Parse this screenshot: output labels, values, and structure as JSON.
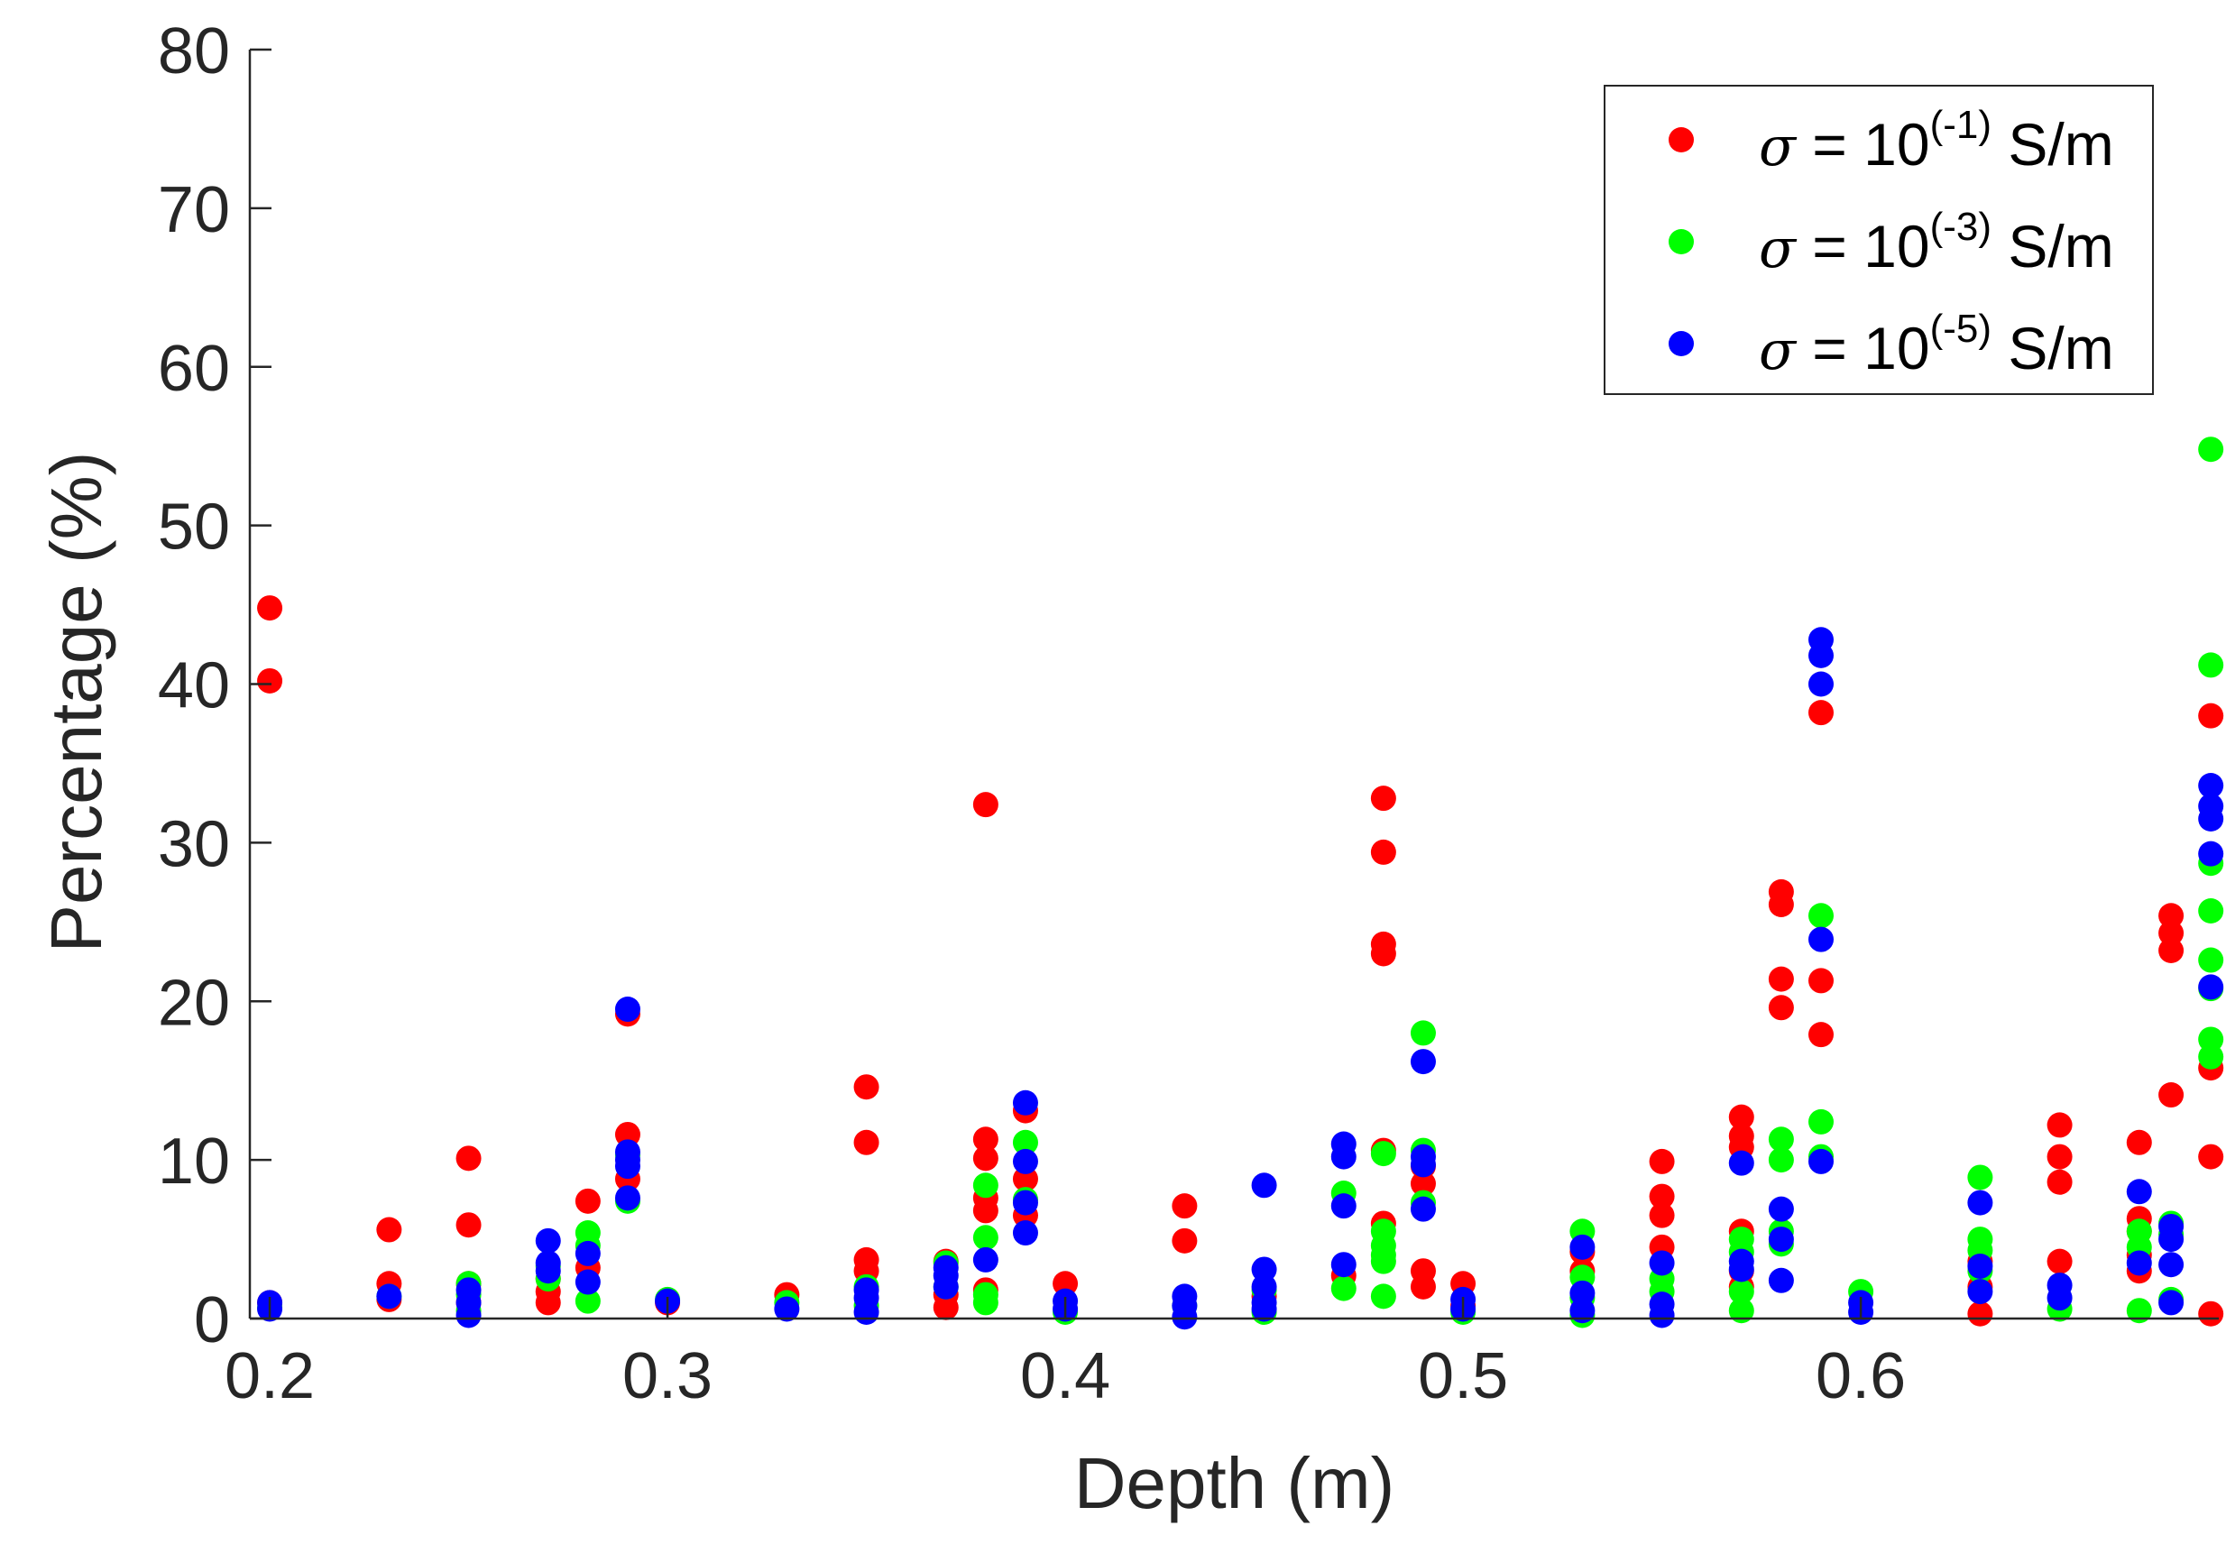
{
  "chart_data": {
    "type": "scatter",
    "title": "",
    "xlabel": "Depth (m)",
    "ylabel": "Percentage (%)",
    "xlim": [
      0.195,
      0.69
    ],
    "ylim": [
      0,
      80
    ],
    "xticks": [
      0.2,
      0.3,
      0.4,
      0.5,
      0.6
    ],
    "xtick_labels": [
      "0.2",
      "0.3",
      "0.4",
      "0.5",
      "0.6"
    ],
    "yticks": [
      0,
      10,
      20,
      30,
      40,
      50,
      60,
      70,
      80
    ],
    "ytick_labels": [
      "0",
      "10",
      "20",
      "30",
      "40",
      "50",
      "60",
      "70",
      "80"
    ],
    "grid": false,
    "legend_position": "top-right",
    "series": [
      {
        "name": "σ = 10(-1) S/m",
        "legend": {
          "symbol": "σ",
          "base": " = 10",
          "exponent": "(-1)",
          "unit": " S/m"
        },
        "color": "#ff0000",
        "points": [
          [
            0.2,
            44.8
          ],
          [
            0.2,
            40.2
          ],
          [
            0.2,
            1.0
          ],
          [
            0.23,
            5.6
          ],
          [
            0.23,
            2.2
          ],
          [
            0.23,
            1.2
          ],
          [
            0.25,
            10.1
          ],
          [
            0.25,
            5.9
          ],
          [
            0.25,
            2.2
          ],
          [
            0.25,
            1.0
          ],
          [
            0.27,
            2.5
          ],
          [
            0.27,
            1.7
          ],
          [
            0.27,
            1.0
          ],
          [
            0.28,
            7.4
          ],
          [
            0.28,
            3.2
          ],
          [
            0.29,
            19.2
          ],
          [
            0.29,
            11.6
          ],
          [
            0.29,
            8.8
          ],
          [
            0.3,
            1.0
          ],
          [
            0.33,
            1.5
          ],
          [
            0.35,
            14.6
          ],
          [
            0.35,
            11.1
          ],
          [
            0.35,
            3.7
          ],
          [
            0.35,
            3.0
          ],
          [
            0.37,
            3.6
          ],
          [
            0.37,
            1.5
          ],
          [
            0.37,
            0.7
          ],
          [
            0.38,
            32.4
          ],
          [
            0.38,
            11.3
          ],
          [
            0.38,
            10.1
          ],
          [
            0.38,
            7.6
          ],
          [
            0.38,
            6.8
          ],
          [
            0.38,
            1.8
          ],
          [
            0.39,
            13.1
          ],
          [
            0.39,
            8.8
          ],
          [
            0.39,
            6.5
          ],
          [
            0.4,
            2.2
          ],
          [
            0.43,
            7.1
          ],
          [
            0.43,
            4.9
          ],
          [
            0.45,
            1.4
          ],
          [
            0.47,
            2.7
          ],
          [
            0.48,
            32.8
          ],
          [
            0.48,
            29.4
          ],
          [
            0.48,
            23.6
          ],
          [
            0.48,
            23.0
          ],
          [
            0.48,
            10.6
          ],
          [
            0.48,
            6.0
          ],
          [
            0.49,
            9.6
          ],
          [
            0.49,
            8.5
          ],
          [
            0.49,
            3.0
          ],
          [
            0.49,
            2.0
          ],
          [
            0.5,
            2.2
          ],
          [
            0.5,
            0.8
          ],
          [
            0.53,
            4.2
          ],
          [
            0.53,
            3.0
          ],
          [
            0.55,
            9.9
          ],
          [
            0.55,
            7.7
          ],
          [
            0.55,
            6.5
          ],
          [
            0.55,
            4.5
          ],
          [
            0.57,
            12.7
          ],
          [
            0.57,
            11.5
          ],
          [
            0.57,
            10.8
          ],
          [
            0.57,
            5.5
          ],
          [
            0.57,
            3.0
          ],
          [
            0.57,
            2.0
          ],
          [
            0.58,
            26.9
          ],
          [
            0.58,
            26.1
          ],
          [
            0.58,
            21.4
          ],
          [
            0.58,
            19.6
          ],
          [
            0.59,
            38.2
          ],
          [
            0.59,
            21.3
          ],
          [
            0.59,
            17.9
          ],
          [
            0.63,
            3.6
          ],
          [
            0.63,
            2.0
          ],
          [
            0.63,
            0.3
          ],
          [
            0.65,
            12.2
          ],
          [
            0.65,
            10.2
          ],
          [
            0.65,
            8.6
          ],
          [
            0.65,
            3.6
          ],
          [
            0.67,
            11.1
          ],
          [
            0.67,
            6.3
          ],
          [
            0.67,
            5.5
          ],
          [
            0.67,
            4.0
          ],
          [
            0.67,
            3.0
          ],
          [
            0.678,
            25.4
          ],
          [
            0.678,
            24.3
          ],
          [
            0.678,
            23.2
          ],
          [
            0.678,
            14.1
          ],
          [
            0.688,
            38.0
          ],
          [
            0.688,
            15.8
          ],
          [
            0.688,
            10.2
          ],
          [
            0.688,
            0.3
          ]
        ]
      },
      {
        "name": "σ = 10(-3) S/m",
        "legend": {
          "symbol": "σ",
          "base": " = 10",
          "exponent": "(-3)",
          "unit": " S/m"
        },
        "color": "#00ff00",
        "points": [
          [
            0.2,
            0.7
          ],
          [
            0.23,
            1.4
          ],
          [
            0.25,
            2.2
          ],
          [
            0.25,
            1.5
          ],
          [
            0.25,
            0.5
          ],
          [
            0.27,
            3.3
          ],
          [
            0.27,
            2.5
          ],
          [
            0.28,
            5.4
          ],
          [
            0.28,
            4.6
          ],
          [
            0.28,
            1.1
          ],
          [
            0.29,
            10.3
          ],
          [
            0.29,
            7.4
          ],
          [
            0.3,
            1.2
          ],
          [
            0.33,
            1.0
          ],
          [
            0.35,
            2.0
          ],
          [
            0.35,
            0.8
          ],
          [
            0.37,
            3.5
          ],
          [
            0.37,
            2.0
          ],
          [
            0.38,
            8.4
          ],
          [
            0.38,
            5.1
          ],
          [
            0.38,
            1.5
          ],
          [
            0.38,
            1.0
          ],
          [
            0.39,
            11.1
          ],
          [
            0.39,
            7.5
          ],
          [
            0.4,
            0.4
          ],
          [
            0.43,
            0.8
          ],
          [
            0.45,
            1.8
          ],
          [
            0.45,
            0.4
          ],
          [
            0.47,
            7.9
          ],
          [
            0.47,
            1.9
          ],
          [
            0.48,
            10.4
          ],
          [
            0.48,
            5.5
          ],
          [
            0.48,
            4.6
          ],
          [
            0.48,
            4.0
          ],
          [
            0.48,
            3.6
          ],
          [
            0.48,
            1.4
          ],
          [
            0.49,
            18.0
          ],
          [
            0.49,
            10.6
          ],
          [
            0.49,
            7.3
          ],
          [
            0.5,
            0.4
          ],
          [
            0.53,
            5.5
          ],
          [
            0.53,
            2.6
          ],
          [
            0.53,
            1.3
          ],
          [
            0.53,
            0.2
          ],
          [
            0.55,
            2.5
          ],
          [
            0.55,
            1.7
          ],
          [
            0.57,
            5.0
          ],
          [
            0.57,
            4.2
          ],
          [
            0.57,
            1.7
          ],
          [
            0.57,
            0.5
          ],
          [
            0.58,
            11.3
          ],
          [
            0.58,
            10.0
          ],
          [
            0.58,
            5.5
          ],
          [
            0.58,
            4.7
          ],
          [
            0.59,
            25.4
          ],
          [
            0.59,
            12.4
          ],
          [
            0.59,
            10.2
          ],
          [
            0.6,
            1.7
          ],
          [
            0.63,
            8.9
          ],
          [
            0.63,
            5.0
          ],
          [
            0.63,
            4.3
          ],
          [
            0.63,
            3.0
          ],
          [
            0.65,
            0.6
          ],
          [
            0.67,
            5.5
          ],
          [
            0.67,
            4.5
          ],
          [
            0.67,
            0.5
          ],
          [
            0.678,
            6.0
          ],
          [
            0.678,
            5.3
          ],
          [
            0.678,
            1.2
          ],
          [
            0.688,
            54.8
          ],
          [
            0.688,
            41.2
          ],
          [
            0.688,
            28.7
          ],
          [
            0.688,
            25.7
          ],
          [
            0.688,
            22.6
          ],
          [
            0.688,
            20.8
          ],
          [
            0.688,
            17.6
          ],
          [
            0.688,
            16.5
          ]
        ]
      },
      {
        "name": "σ = 10(-5) S/m",
        "legend": {
          "symbol": "σ",
          "base": " = 10",
          "exponent": "(-5)",
          "unit": " S/m"
        },
        "color": "#0000ff",
        "points": [
          [
            0.2,
            1.0
          ],
          [
            0.2,
            0.6
          ],
          [
            0.23,
            1.4
          ],
          [
            0.25,
            1.8
          ],
          [
            0.25,
            1.0
          ],
          [
            0.25,
            0.2
          ],
          [
            0.27,
            4.9
          ],
          [
            0.27,
            3.5
          ],
          [
            0.27,
            3.0
          ],
          [
            0.28,
            4.1
          ],
          [
            0.28,
            2.3
          ],
          [
            0.29,
            19.5
          ],
          [
            0.29,
            10.5
          ],
          [
            0.29,
            10.0
          ],
          [
            0.29,
            9.6
          ],
          [
            0.29,
            7.6
          ],
          [
            0.3,
            1.1
          ],
          [
            0.33,
            0.6
          ],
          [
            0.35,
            1.8
          ],
          [
            0.35,
            1.3
          ],
          [
            0.35,
            0.4
          ],
          [
            0.37,
            3.2
          ],
          [
            0.37,
            2.7
          ],
          [
            0.37,
            2.0
          ],
          [
            0.38,
            3.7
          ],
          [
            0.39,
            13.6
          ],
          [
            0.39,
            9.9
          ],
          [
            0.39,
            7.3
          ],
          [
            0.39,
            5.4
          ],
          [
            0.4,
            1.1
          ],
          [
            0.4,
            0.6
          ],
          [
            0.43,
            1.4
          ],
          [
            0.43,
            0.8
          ],
          [
            0.43,
            0.1
          ],
          [
            0.45,
            8.4
          ],
          [
            0.45,
            3.1
          ],
          [
            0.45,
            2.0
          ],
          [
            0.45,
            1.0
          ],
          [
            0.45,
            0.6
          ],
          [
            0.47,
            11.0
          ],
          [
            0.47,
            10.2
          ],
          [
            0.47,
            7.1
          ],
          [
            0.47,
            3.4
          ],
          [
            0.49,
            16.2
          ],
          [
            0.49,
            10.2
          ],
          [
            0.49,
            9.7
          ],
          [
            0.49,
            6.9
          ],
          [
            0.5,
            1.2
          ],
          [
            0.5,
            0.6
          ],
          [
            0.53,
            4.5
          ],
          [
            0.53,
            1.6
          ],
          [
            0.53,
            0.5
          ],
          [
            0.55,
            3.5
          ],
          [
            0.55,
            0.9
          ],
          [
            0.55,
            0.2
          ],
          [
            0.57,
            9.8
          ],
          [
            0.57,
            3.6
          ],
          [
            0.57,
            3.1
          ],
          [
            0.58,
            6.9
          ],
          [
            0.58,
            5.0
          ],
          [
            0.58,
            2.4
          ],
          [
            0.59,
            42.8
          ],
          [
            0.59,
            41.8
          ],
          [
            0.59,
            40.0
          ],
          [
            0.59,
            23.9
          ],
          [
            0.59,
            9.9
          ],
          [
            0.6,
            1.0
          ],
          [
            0.6,
            0.4
          ],
          [
            0.63,
            7.3
          ],
          [
            0.63,
            3.3
          ],
          [
            0.63,
            1.7
          ],
          [
            0.65,
            2.1
          ],
          [
            0.65,
            1.3
          ],
          [
            0.67,
            8.0
          ],
          [
            0.67,
            3.5
          ],
          [
            0.678,
            5.8
          ],
          [
            0.678,
            5.0
          ],
          [
            0.678,
            3.4
          ],
          [
            0.678,
            1.0
          ],
          [
            0.688,
            33.6
          ],
          [
            0.688,
            32.3
          ],
          [
            0.688,
            31.5
          ],
          [
            0.688,
            29.3
          ],
          [
            0.688,
            20.9
          ]
        ]
      }
    ]
  }
}
